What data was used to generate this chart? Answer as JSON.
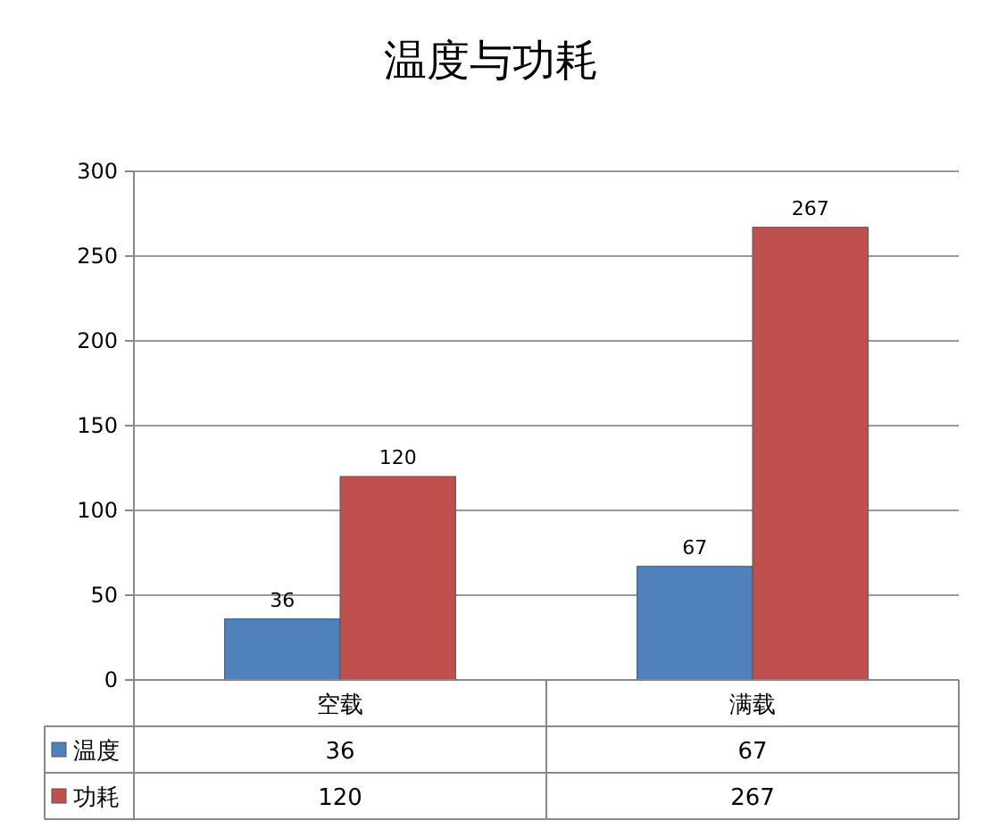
{
  "chart_data": {
    "type": "bar",
    "title": "温度与功耗",
    "categories": [
      "空载",
      "满载"
    ],
    "series": [
      {
        "name": "温度",
        "color": "#4f81bd",
        "values": [
          36,
          67
        ],
        "value_labels": [
          "36",
          "67"
        ]
      },
      {
        "name": "功耗",
        "color": "#c0504d",
        "values": [
          120,
          267
        ],
        "value_labels": [
          "120",
          "267"
        ]
      }
    ],
    "ylim": [
      0,
      300
    ],
    "yticks": [
      0,
      50,
      100,
      150,
      200,
      250,
      300
    ],
    "grid": "y",
    "legend": "bottom",
    "annotations": [
      "36",
      "67",
      "120",
      "267"
    ]
  }
}
